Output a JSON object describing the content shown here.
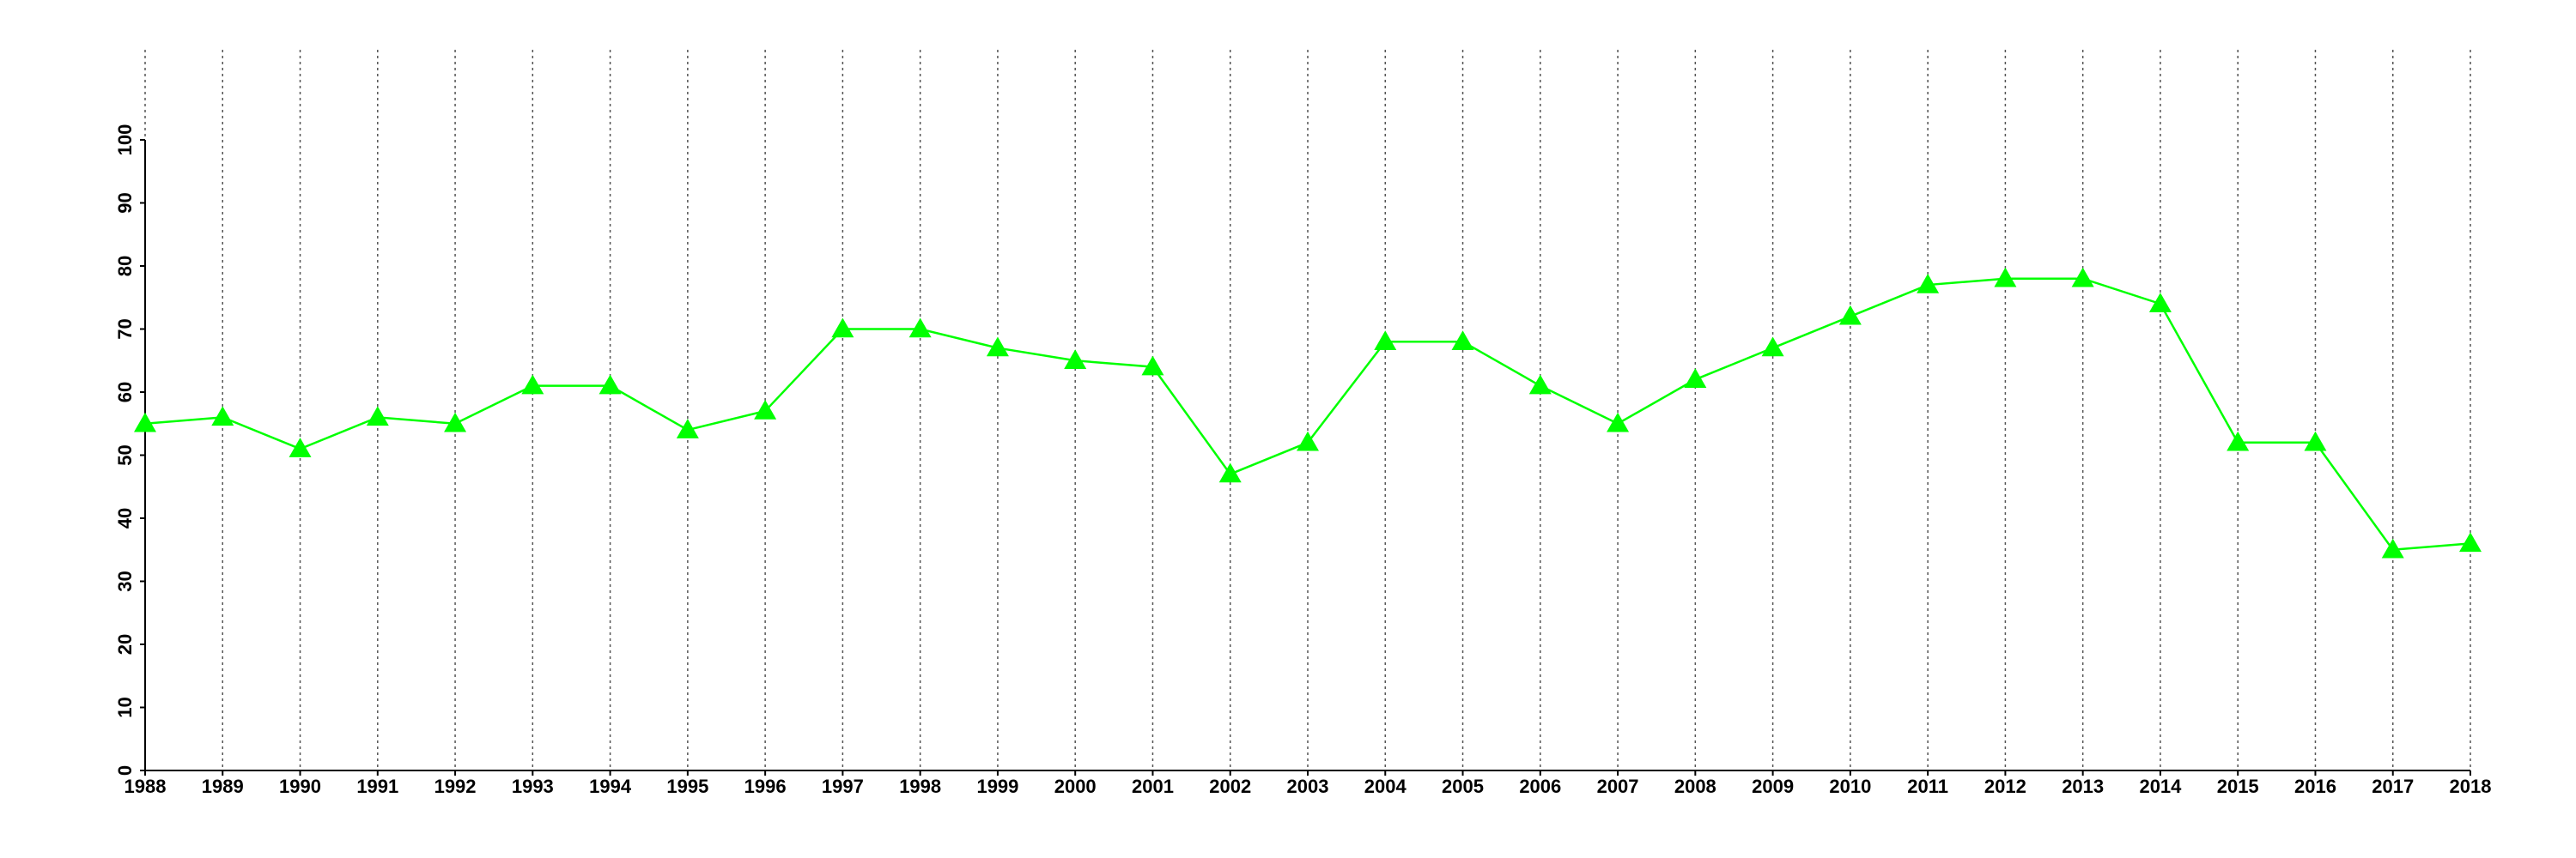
{
  "chart_data": {
    "type": "line",
    "x": [
      1988,
      1989,
      1990,
      1991,
      1992,
      1993,
      1994,
      1995,
      1996,
      1997,
      1998,
      1999,
      2000,
      2001,
      2002,
      2003,
      2004,
      2005,
      2006,
      2007,
      2008,
      2009,
      2010,
      2011,
      2012,
      2013,
      2014,
      2015,
      2016,
      2017,
      2018
    ],
    "series": [
      {
        "color": "#00ff00",
        "marker": "triangle",
        "values": [
          55,
          56,
          51,
          56,
          55,
          61,
          61,
          54,
          57,
          70,
          70,
          67,
          65,
          64,
          47,
          52,
          68,
          68,
          61,
          55,
          62,
          67,
          72,
          77,
          78,
          78,
          74,
          52,
          52,
          35,
          36
        ]
      }
    ],
    "xlim": [
      1988,
      2018
    ],
    "xticks": [
      1988,
      1989,
      1990,
      1991,
      1992,
      1993,
      1994,
      1995,
      1996,
      1997,
      1998,
      1999,
      2000,
      2001,
      2002,
      2003,
      2004,
      2005,
      2006,
      2007,
      2008,
      2009,
      2010,
      2011,
      2012,
      2013,
      2014,
      2015,
      2016,
      2017,
      2018
    ],
    "ylim": [
      0,
      100
    ],
    "yticks": [
      0,
      10,
      20,
      30,
      40,
      50,
      60,
      70,
      80,
      90,
      100
    ],
    "grid": "x"
  }
}
